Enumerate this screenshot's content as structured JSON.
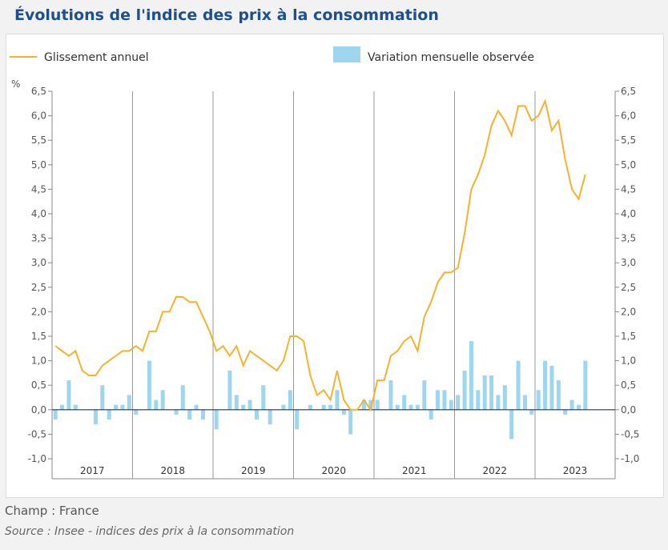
{
  "title": "Évolutions de l'indice des prix à la consommation",
  "footer": {
    "champ": "Champ : France",
    "source": "Source : Insee - indices des prix à la consommation"
  },
  "chart_data": {
    "type": "bar+line",
    "unit": "%",
    "ylim": [
      -1.0,
      6.5
    ],
    "yticks": [
      "-1,0",
      "-0,5",
      "0,0",
      "0,5",
      "1,0",
      "1,5",
      "2,0",
      "2,5",
      "3,0",
      "3,5",
      "4,0",
      "4,5",
      "5,0",
      "5,5",
      "6,0",
      "6,5"
    ],
    "years": [
      "2017",
      "2018",
      "2019",
      "2020",
      "2021",
      "2022",
      "2023"
    ],
    "legend_placement": "top",
    "colors": {
      "line": "#f7b12c",
      "bars": "#9dd6ee",
      "zero": "#1f2f8a"
    },
    "series": [
      {
        "name": "Glissement annuel",
        "type": "line",
        "values": [
          1.3,
          1.2,
          1.1,
          1.2,
          0.8,
          0.7,
          0.7,
          0.9,
          1.0,
          1.1,
          1.2,
          1.2,
          1.3,
          1.2,
          1.6,
          1.6,
          2.0,
          2.0,
          2.3,
          2.3,
          2.2,
          2.2,
          1.9,
          1.6,
          1.2,
          1.3,
          1.1,
          1.3,
          0.9,
          1.2,
          1.1,
          1.0,
          0.9,
          0.8,
          1.0,
          1.5,
          1.5,
          1.4,
          0.7,
          0.3,
          0.4,
          0.2,
          0.8,
          0.2,
          0.0,
          0.0,
          0.2,
          0.0,
          0.6,
          0.6,
          1.1,
          1.2,
          1.4,
          1.5,
          1.2,
          1.9,
          2.2,
          2.6,
          2.8,
          2.8,
          2.9,
          3.6,
          4.5,
          4.8,
          5.2,
          5.8,
          6.1,
          5.9,
          5.6,
          6.2,
          6.2,
          5.9,
          6.0,
          6.3,
          5.7,
          5.9,
          5.1,
          4.5,
          4.3,
          4.8
        ]
      },
      {
        "name": "Variation mensuelle observée",
        "type": "bar",
        "values": [
          -0.2,
          0.1,
          0.6,
          0.1,
          0.0,
          0.0,
          -0.3,
          0.5,
          -0.2,
          0.1,
          0.1,
          0.3,
          -0.1,
          0.0,
          1.0,
          0.2,
          0.4,
          0.0,
          -0.1,
          0.5,
          -0.2,
          0.1,
          -0.2,
          0.0,
          -0.4,
          0.0,
          0.8,
          0.3,
          0.1,
          0.2,
          -0.2,
          0.5,
          -0.3,
          0.0,
          0.1,
          0.4,
          -0.4,
          0.0,
          0.1,
          0.0,
          0.1,
          0.1,
          0.4,
          -0.1,
          -0.5,
          0.0,
          0.2,
          0.2,
          0.2,
          0.0,
          0.6,
          0.1,
          0.3,
          0.1,
          0.1,
          0.6,
          -0.2,
          0.4,
          0.4,
          0.2,
          0.3,
          0.8,
          1.4,
          0.4,
          0.7,
          0.7,
          0.3,
          0.5,
          -0.6,
          1.0,
          0.3,
          -0.1,
          0.4,
          1.0,
          0.9,
          0.6,
          -0.1,
          0.2,
          0.1,
          1.0
        ]
      }
    ]
  }
}
